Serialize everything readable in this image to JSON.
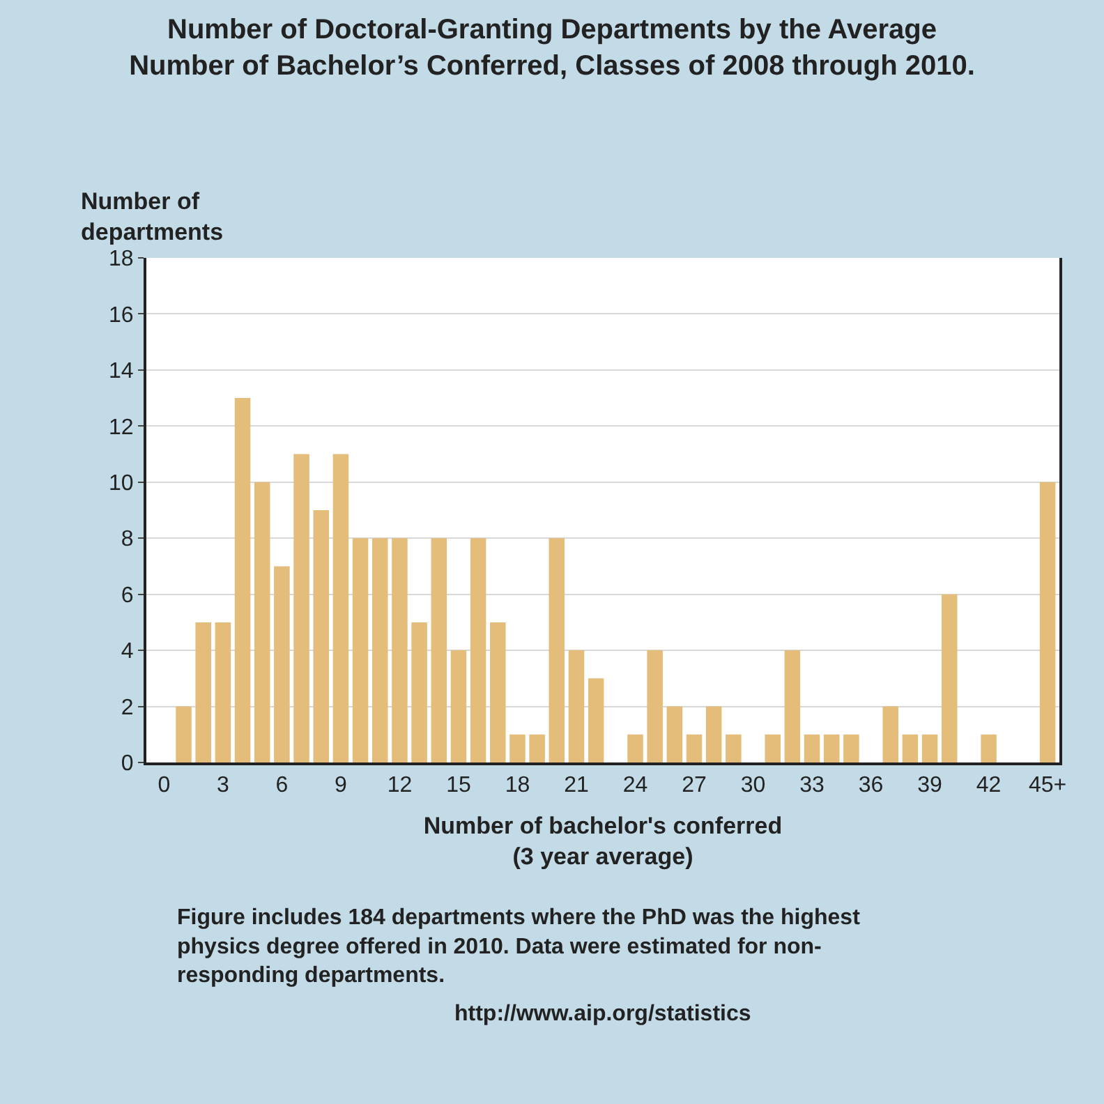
{
  "chart_data": {
    "type": "bar",
    "title": "Number of Doctoral-Granting Departments by the Average\nNumber of Bachelor’s Conferred, Classes of 2008 through 2010.",
    "ylabel": "Number of\ndepartments",
    "xlabel": "Number of bachelor's conferred\n(3 year average)",
    "x": [
      1,
      2,
      3,
      4,
      5,
      6,
      7,
      8,
      9,
      10,
      11,
      12,
      13,
      14,
      15,
      16,
      17,
      18,
      19,
      20,
      21,
      22,
      23,
      24,
      25,
      26,
      27,
      28,
      29,
      30,
      31,
      32,
      33,
      34,
      35,
      36,
      37,
      38,
      39,
      40,
      41,
      42,
      43,
      44,
      45
    ],
    "values": [
      2,
      5,
      5,
      13,
      10,
      7,
      11,
      9,
      11,
      8,
      8,
      8,
      5,
      8,
      4,
      8,
      5,
      1,
      1,
      8,
      4,
      3,
      0,
      1,
      4,
      2,
      1,
      2,
      1,
      0,
      1,
      4,
      1,
      1,
      1,
      0,
      2,
      1,
      1,
      6,
      0,
      1,
      0,
      0,
      10
    ],
    "color": "#e5bd7b",
    "xlim": [
      -0.9,
      45.6
    ],
    "xticks": [
      0,
      3,
      6,
      9,
      12,
      15,
      18,
      21,
      24,
      27,
      30,
      33,
      36,
      39,
      42,
      {
        "value": 45,
        "label": "45+"
      }
    ],
    "ylim": [
      0,
      18
    ],
    "yticks": [
      0,
      2,
      4,
      6,
      8,
      10,
      12,
      14,
      16,
      18
    ],
    "grid": "y",
    "annotations": [
      "Figure includes 184 departments where the PhD was the highest\nphysics degree offered in 2010. Data were estimated for non-\nresponding departments.",
      "http://www.aip.org/statistics"
    ]
  }
}
